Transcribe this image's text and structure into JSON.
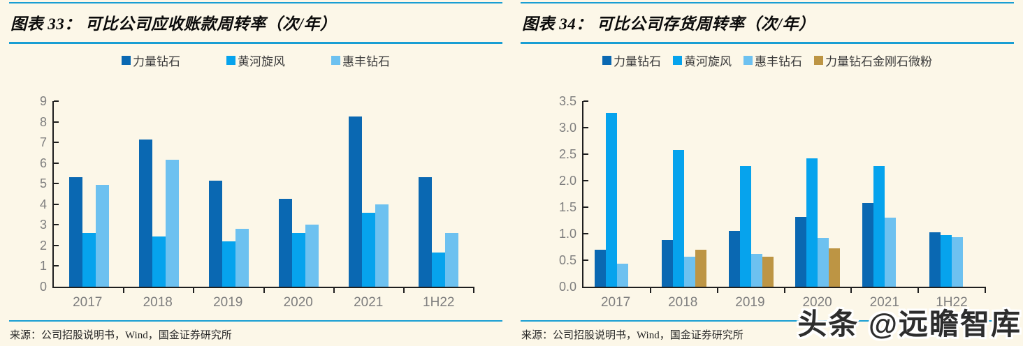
{
  "page": {
    "background": "#FCF7E8",
    "watermark": "头条 @远瞻智库",
    "accent_line_color": "#199ED3"
  },
  "charts": [
    {
      "title": "图表 33：  可比公司应收账款周转率（次/年）",
      "source": "来源：公司招股说明书，Wind，国金证券研究所",
      "chart_data": {
        "type": "bar",
        "title": "可比公司应收账款周转率（次/年）",
        "xlabel": "",
        "ylabel": "",
        "legend_position": "top",
        "grid": false,
        "ylim": [
          0,
          9
        ],
        "categories": [
          "2017",
          "2018",
          "2019",
          "2020",
          "2021",
          "1H22"
        ],
        "series": [
          {
            "name": "力量钻石",
            "color": "#0A68B2",
            "values": [
              5.3,
              7.15,
              5.15,
              4.25,
              8.25,
              5.3
            ]
          },
          {
            "name": "黄河旋风",
            "color": "#06A3ED",
            "values": [
              2.6,
              2.45,
              2.2,
              2.6,
              3.6,
              1.65
            ]
          },
          {
            "name": "惠丰钻石",
            "color": "#6DC1F0",
            "values": [
              4.95,
              6.15,
              2.8,
              3.0,
              4.0,
              2.6
            ]
          }
        ],
        "yticks": [
          {
            "v": 9,
            "label": "9"
          },
          {
            "v": 8,
            "label": "8"
          },
          {
            "v": 7,
            "label": "7"
          },
          {
            "v": 6,
            "label": "6"
          },
          {
            "v": 5,
            "label": "5"
          },
          {
            "v": 4,
            "label": "4"
          },
          {
            "v": 3,
            "label": "3"
          },
          {
            "v": 2,
            "label": "2"
          },
          {
            "v": 1,
            "label": "1"
          },
          {
            "v": 0,
            "label": "0"
          }
        ]
      }
    },
    {
      "title": "图表 34：  可比公司存货周转率（次/年）",
      "source": "来源：公司招股说明书，Wind，国金证券研究所",
      "chart_data": {
        "type": "bar",
        "title": "可比公司存货周转率（次/年）",
        "xlabel": "",
        "ylabel": "",
        "legend_position": "top",
        "grid": false,
        "ylim": [
          0,
          3.5
        ],
        "categories": [
          "2017",
          "2018",
          "2019",
          "2020",
          "2021",
          "1H22"
        ],
        "series": [
          {
            "name": "力量钻石",
            "color": "#0A68B2",
            "values": [
              0.7,
              0.88,
              1.05,
              1.32,
              1.58,
              1.03
            ]
          },
          {
            "name": "黄河旋风",
            "color": "#06A3ED",
            "values": [
              3.27,
              2.58,
              2.27,
              2.42,
              2.28,
              0.98
            ]
          },
          {
            "name": "惠丰钻石",
            "color": "#6DC1F0",
            "values": [
              0.43,
              0.56,
              0.62,
              0.92,
              1.3,
              0.94
            ]
          },
          {
            "name": "力量钻石金刚石微粉",
            "color": "#BD9544",
            "values": [
              null,
              0.7,
              0.56,
              0.72,
              null,
              null
            ]
          }
        ],
        "yticks": [
          {
            "v": 3.5,
            "label": "3.5"
          },
          {
            "v": 3.0,
            "label": "3.0"
          },
          {
            "v": 2.5,
            "label": "2.5"
          },
          {
            "v": 2.0,
            "label": "2.0"
          },
          {
            "v": 1.5,
            "label": "1.5"
          },
          {
            "v": 1.0,
            "label": "1.0"
          },
          {
            "v": 0.5,
            "label": "0.5"
          },
          {
            "v": 0.0,
            "label": "0.0"
          }
        ]
      }
    }
  ]
}
